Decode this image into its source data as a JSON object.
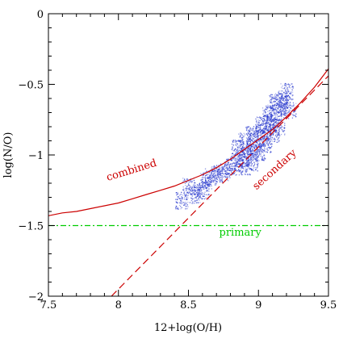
{
  "chart_data": {
    "type": "scatter",
    "xlabel": "12+log(O/H)",
    "ylabel": "log(N/O)",
    "xlim": [
      7.5,
      9.5
    ],
    "ylim": [
      -2,
      0
    ],
    "x_ticks": [
      {
        "value": 7.5,
        "label": "7.5"
      },
      {
        "value": 8,
        "label": "8"
      },
      {
        "value": 8.5,
        "label": "8.5"
      },
      {
        "value": 9,
        "label": "9"
      },
      {
        "value": 9.5,
        "label": "9.5"
      }
    ],
    "y_ticks": [
      {
        "value": 0,
        "label": "0"
      },
      {
        "value": -0.5,
        "label": "−0.5"
      },
      {
        "value": -1,
        "label": "−1"
      },
      {
        "value": -1.5,
        "label": "−1.5"
      },
      {
        "value": -2,
        "label": "−2"
      }
    ],
    "grid": false,
    "series": [
      {
        "name": "combined",
        "style": "solid",
        "color": "#cc0000",
        "x": [
          7.5,
          7.6,
          7.7,
          7.8,
          7.9,
          8.0,
          8.1,
          8.2,
          8.3,
          8.4,
          8.5,
          8.6,
          8.7,
          8.8,
          8.9,
          9.0,
          9.1,
          9.2,
          9.3,
          9.4,
          9.5
        ],
        "y": [
          -1.43,
          -1.41,
          -1.4,
          -1.38,
          -1.36,
          -1.34,
          -1.31,
          -1.28,
          -1.25,
          -1.22,
          -1.18,
          -1.14,
          -1.09,
          -1.03,
          -0.96,
          -0.89,
          -0.82,
          -0.73,
          -0.63,
          -0.52,
          -0.39
        ]
      },
      {
        "name": "secondary",
        "style": "dashed",
        "color": "#cc0000",
        "x": [
          7.95,
          9.5
        ],
        "y": [
          -2.0,
          -0.44
        ]
      },
      {
        "name": "primary",
        "style": "dash-dot",
        "color": "#00cc00",
        "x": [
          7.5,
          9.5
        ],
        "y": [
          -1.5,
          -1.5
        ]
      }
    ],
    "scatter_cloud": {
      "color": "#2233cc",
      "description_points": [
        {
          "x": 8.62,
          "y": -1.18
        },
        {
          "x": 8.66,
          "y": -1.15
        },
        {
          "x": 8.7,
          "y": -1.13
        },
        {
          "x": 8.75,
          "y": -1.12
        },
        {
          "x": 8.8,
          "y": -1.08
        },
        {
          "x": 8.84,
          "y": -1.05
        },
        {
          "x": 8.88,
          "y": -1.02
        },
        {
          "x": 8.92,
          "y": -0.98
        },
        {
          "x": 8.96,
          "y": -0.94
        },
        {
          "x": 9.0,
          "y": -0.88
        },
        {
          "x": 9.04,
          "y": -0.83
        },
        {
          "x": 9.08,
          "y": -0.77
        },
        {
          "x": 9.12,
          "y": -0.72
        },
        {
          "x": 9.15,
          "y": -0.65
        },
        {
          "x": 9.18,
          "y": -0.6
        },
        {
          "x": 8.9,
          "y": -1.08
        },
        {
          "x": 8.95,
          "y": -1.05
        },
        {
          "x": 9.0,
          "y": -0.98
        },
        {
          "x": 9.05,
          "y": -0.92
        },
        {
          "x": 9.1,
          "y": -0.85
        },
        {
          "x": 9.14,
          "y": -0.8
        },
        {
          "x": 8.85,
          "y": -0.95
        },
        {
          "x": 8.9,
          "y": -0.9
        },
        {
          "x": 8.95,
          "y": -0.85
        },
        {
          "x": 9.02,
          "y": -0.78
        },
        {
          "x": 9.07,
          "y": -0.7
        },
        {
          "x": 9.12,
          "y": -0.62
        },
        {
          "x": 8.55,
          "y": -1.28
        },
        {
          "x": 8.6,
          "y": -1.25
        },
        {
          "x": 8.5,
          "y": -1.22
        },
        {
          "x": 8.45,
          "y": -1.32
        },
        {
          "x": 9.2,
          "y": -0.55
        },
        {
          "x": 9.22,
          "y": -0.68
        }
      ]
    },
    "annotations": [
      {
        "text": "combined",
        "x": 8.1,
        "y": -1.13,
        "angle": -17,
        "color": "#cc0000"
      },
      {
        "text": "secondary",
        "x": 9.13,
        "y": -1.12,
        "angle": -42,
        "color": "#cc0000"
      },
      {
        "text": "primary",
        "x": 8.87,
        "y": -1.57,
        "angle": 0,
        "color": "#00cc00"
      }
    ]
  }
}
